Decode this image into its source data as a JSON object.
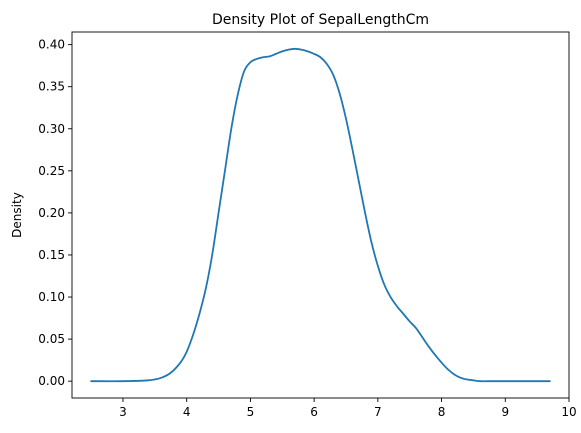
{
  "chart_data": {
    "type": "line",
    "title": "Density Plot of SepalLengthCm",
    "xlabel": "",
    "ylabel": "Density",
    "xlim": [
      2.2,
      10.0
    ],
    "ylim": [
      -0.02,
      0.415
    ],
    "xticks": [
      3,
      4,
      5,
      6,
      7,
      8,
      9,
      10
    ],
    "yticks": [
      0.0,
      0.05,
      0.1,
      0.15,
      0.2,
      0.25,
      0.3,
      0.35,
      0.4
    ],
    "ytick_labels": [
      "0.00",
      "0.05",
      "0.10",
      "0.15",
      "0.20",
      "0.25",
      "0.30",
      "0.35",
      "0.40"
    ],
    "grid": false,
    "line_color": "#1f77b4",
    "series": [
      {
        "x": [
          2.5,
          3.0,
          3.4,
          3.6,
          3.75,
          3.9,
          4.0,
          4.1,
          4.2,
          4.3,
          4.4,
          4.5,
          4.6,
          4.7,
          4.8,
          4.9,
          5.0,
          5.1,
          5.2,
          5.3,
          5.4,
          5.5,
          5.6,
          5.7,
          5.8,
          5.9,
          6.0,
          6.1,
          6.2,
          6.3,
          6.4,
          6.5,
          6.6,
          6.7,
          6.8,
          6.9,
          7.0,
          7.1,
          7.2,
          7.3,
          7.4,
          7.5,
          7.6,
          7.7,
          7.8,
          7.9,
          8.0,
          8.1,
          8.2,
          8.3,
          8.4,
          8.5,
          8.6,
          8.8,
          9.0,
          9.7
        ],
        "y": [
          0.0,
          0.0,
          0.001,
          0.004,
          0.01,
          0.022,
          0.035,
          0.055,
          0.08,
          0.11,
          0.15,
          0.2,
          0.25,
          0.3,
          0.34,
          0.368,
          0.379,
          0.383,
          0.385,
          0.386,
          0.389,
          0.392,
          0.394,
          0.395,
          0.394,
          0.392,
          0.389,
          0.385,
          0.377,
          0.364,
          0.342,
          0.312,
          0.276,
          0.238,
          0.2,
          0.165,
          0.137,
          0.115,
          0.1,
          0.089,
          0.08,
          0.071,
          0.063,
          0.052,
          0.041,
          0.031,
          0.022,
          0.014,
          0.008,
          0.004,
          0.002,
          0.001,
          0.0,
          0.0,
          0.0,
          0.0
        ]
      }
    ]
  }
}
